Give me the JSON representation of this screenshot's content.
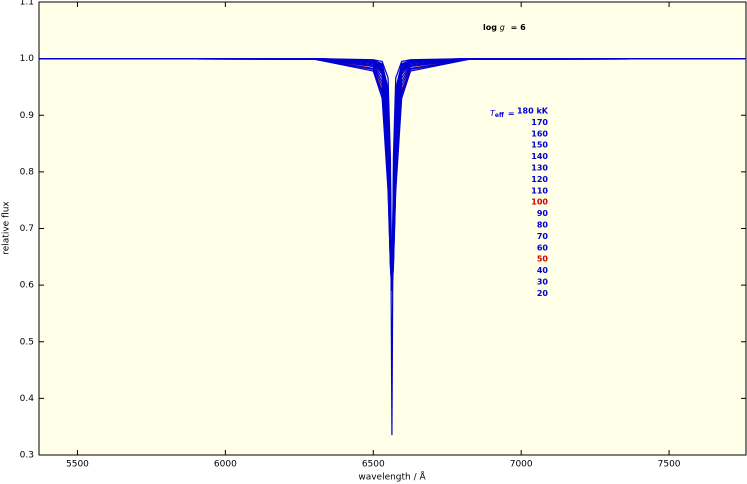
{
  "chart_data": {
    "type": "line",
    "x_label": "wavelength / Å",
    "y_label": "relative flux",
    "annotations": {
      "log_g": {
        "prefix": "log",
        "symbol": "g",
        "value": "= 6"
      },
      "teff": {
        "symbol": "T",
        "subscript": "eff",
        "sign": "="
      }
    },
    "xlim": [
      5370,
      7760
    ],
    "ylim": [
      0.3,
      1.1
    ],
    "xticks": [
      5500,
      6000,
      6500,
      7000,
      7500
    ],
    "yticks": [
      0.3,
      0.4,
      0.5,
      0.6,
      0.7,
      0.8,
      0.9,
      {
        "value": 1,
        "label": "1.0"
      },
      1.1
    ],
    "x": [
      5370,
      6300,
      6500,
      6530,
      6550,
      6558,
      6563,
      6568,
      6576,
      6596,
      6626,
      6826,
      7756
    ],
    "series": [
      {
        "name": "180 kK",
        "color": "#0000d0",
        "values": [
          1.0,
          1.0,
          0.998,
          0.995,
          0.966,
          0.824,
          0.335,
          0.824,
          0.966,
          0.995,
          0.998,
          1.0,
          1.0
        ]
      },
      {
        "name": "170",
        "color": "#0000d0",
        "values": [
          1.0,
          1.0,
          0.997,
          0.991,
          0.947,
          0.795,
          0.59,
          0.795,
          0.947,
          0.991,
          0.997,
          1.0,
          1.0
        ]
      },
      {
        "name": "160",
        "color": "#0000d0",
        "values": [
          1.0,
          1.0,
          0.997,
          0.989,
          0.938,
          0.775,
          0.59,
          0.775,
          0.938,
          0.989,
          0.997,
          1.0,
          1.0
        ]
      },
      {
        "name": "150",
        "color": "#0000d0",
        "values": [
          1.0,
          1.0,
          0.996,
          0.987,
          0.928,
          0.758,
          0.59,
          0.758,
          0.928,
          0.987,
          0.996,
          1.0,
          1.0
        ]
      },
      {
        "name": "140",
        "color": "#0000d0",
        "values": [
          1.0,
          1.0,
          0.996,
          0.985,
          0.918,
          0.742,
          0.59,
          0.742,
          0.918,
          0.985,
          0.996,
          1.0,
          1.0
        ]
      },
      {
        "name": "130",
        "color": "#0000d0",
        "values": [
          1.0,
          1.0,
          0.995,
          0.982,
          0.908,
          0.728,
          0.59,
          0.728,
          0.908,
          0.982,
          0.995,
          1.0,
          1.0
        ]
      },
      {
        "name": "120",
        "color": "#0000d0",
        "values": [
          1.0,
          1.0,
          0.994,
          0.98,
          0.898,
          0.716,
          0.59,
          0.716,
          0.898,
          0.98,
          0.994,
          1.0,
          1.0
        ]
      },
      {
        "name": "110",
        "color": "#0000d0",
        "values": [
          1.0,
          1.0,
          0.993,
          0.977,
          0.887,
          0.705,
          0.59,
          0.705,
          0.887,
          0.977,
          0.993,
          1.0,
          1.0
        ]
      },
      {
        "name": "100",
        "color": "#d00000",
        "values": [
          1.0,
          1.0,
          0.993,
          0.974,
          0.877,
          0.695,
          0.59,
          0.695,
          0.877,
          0.974,
          0.993,
          1.0,
          1.0
        ]
      },
      {
        "name": "90",
        "color": "#0000d0",
        "values": [
          1.0,
          1.0,
          0.992,
          0.972,
          0.867,
          0.687,
          0.59,
          0.687,
          0.867,
          0.972,
          0.992,
          1.0,
          1.0
        ]
      },
      {
        "name": "80",
        "color": "#0000d0",
        "values": [
          1.0,
          0.999,
          0.99,
          0.966,
          0.848,
          0.672,
          0.59,
          0.672,
          0.848,
          0.966,
          0.99,
          0.999,
          1.0
        ]
      },
      {
        "name": "70",
        "color": "#0000d0",
        "values": [
          1.0,
          0.999,
          0.988,
          0.959,
          0.829,
          0.66,
          0.59,
          0.66,
          0.829,
          0.959,
          0.988,
          0.999,
          1.0
        ]
      },
      {
        "name": "60",
        "color": "#0000d0",
        "values": [
          1.0,
          0.999,
          0.986,
          0.952,
          0.811,
          0.651,
          0.59,
          0.651,
          0.811,
          0.952,
          0.986,
          0.999,
          1.0
        ]
      },
      {
        "name": "50",
        "color": "#d00000",
        "values": [
          1.0,
          0.999,
          0.983,
          0.945,
          0.795,
          0.643,
          0.59,
          0.643,
          0.795,
          0.945,
          0.983,
          0.999,
          1.0
        ]
      },
      {
        "name": "40",
        "color": "#0000d0",
        "values": [
          1.0,
          0.999,
          0.982,
          0.941,
          0.787,
          0.639,
          0.59,
          0.639,
          0.787,
          0.941,
          0.982,
          0.999,
          1.0
        ]
      },
      {
        "name": "30",
        "color": "#0000d0",
        "values": [
          1.0,
          0.999,
          0.981,
          0.937,
          0.78,
          0.636,
          0.59,
          0.636,
          0.78,
          0.937,
          0.981,
          0.999,
          1.0
        ]
      },
      {
        "name": "20",
        "color": "#0000d0",
        "values": [
          1.0,
          0.999,
          0.978,
          0.93,
          0.766,
          0.631,
          0.59,
          0.631,
          0.766,
          0.93,
          0.978,
          0.999,
          1.0
        ]
      }
    ]
  }
}
